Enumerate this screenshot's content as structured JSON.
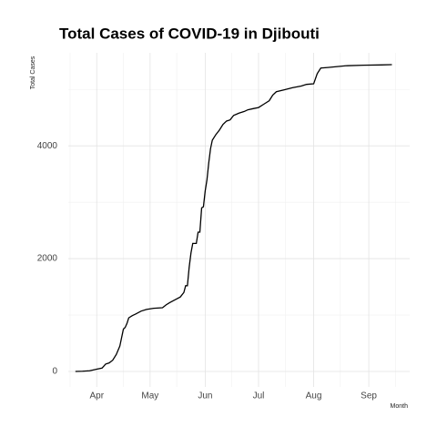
{
  "chart_data": {
    "type": "line",
    "title": "Total Cases of COVID-19 in Djibouti",
    "xlabel": "Month",
    "ylabel": "Total Cases",
    "x": [
      -12,
      -8,
      -4,
      0,
      3,
      5,
      7,
      9,
      11,
      13,
      14,
      15,
      16,
      17,
      18,
      20,
      22,
      25,
      28,
      32,
      37,
      39,
      41,
      44,
      47,
      49,
      50,
      51,
      52,
      53,
      54,
      56,
      57,
      58,
      59,
      60,
      61,
      62,
      63,
      64,
      65,
      67,
      69,
      71,
      73,
      75,
      77,
      80,
      83,
      85,
      88,
      91,
      94,
      97,
      99,
      101,
      105,
      110,
      115,
      118,
      122,
      124,
      126,
      130,
      140,
      150,
      160,
      166
    ],
    "series": [
      {
        "name": "Total Cases",
        "color": "#000000",
        "values": [
          0,
          3,
          12,
          40,
          60,
          130,
          150,
          200,
          300,
          450,
          600,
          750,
          780,
          850,
          950,
          990,
          1020,
          1070,
          1100,
          1120,
          1130,
          1180,
          1220,
          1270,
          1320,
          1400,
          1520,
          1520,
          1850,
          2100,
          2270,
          2270,
          2470,
          2470,
          2900,
          2920,
          3200,
          3400,
          3700,
          3950,
          4100,
          4200,
          4280,
          4380,
          4440,
          4460,
          4540,
          4580,
          4610,
          4640,
          4660,
          4680,
          4740,
          4800,
          4900,
          4960,
          4990,
          5030,
          5060,
          5090,
          5100,
          5280,
          5380,
          5390,
          5420,
          5430,
          5435,
          5440
        ]
      }
    ],
    "xlim": [
      -16,
      176
    ],
    "xticks": [
      {
        "value": 0,
        "label": "Apr"
      },
      {
        "value": 30,
        "label": "May"
      },
      {
        "value": 61,
        "label": "Jun"
      },
      {
        "value": 91,
        "label": "Jul"
      },
      {
        "value": 122,
        "label": "Aug"
      },
      {
        "value": 153,
        "label": "Sep"
      }
    ],
    "x_minor_ticks": [
      -15,
      15,
      45,
      76,
      106,
      137,
      168
    ],
    "ylim": [
      -275,
      5650
    ],
    "yticks": [
      0,
      2000,
      4000
    ],
    "y_minor_ticks": [
      1000,
      3000,
      5000
    ],
    "grid": true
  }
}
